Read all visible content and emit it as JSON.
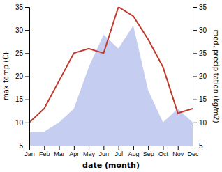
{
  "chart_data": {
    "type": "line",
    "x_label": "date (month)",
    "y_label": "max temp (C)",
    "y2_label": "med. precipitation (kg/m2)",
    "categories": [
      "Jan",
      "Feb",
      "Mar",
      "Apr",
      "May",
      "Jun",
      "Jul",
      "Aug",
      "Sep",
      "Oct",
      "Nov",
      "Dec"
    ],
    "series": [
      {
        "type": "area",
        "axis": "y2",
        "color": "#c5cef0",
        "values": [
          8,
          8,
          10,
          13,
          22,
          29,
          26,
          31,
          17,
          10,
          13,
          10
        ]
      },
      {
        "type": "line",
        "color": "#c0392b",
        "values": [
          10,
          13,
          19,
          25,
          26,
          25,
          35,
          33,
          28,
          22,
          12,
          13
        ]
      }
    ],
    "ylim": [
      5,
      35
    ],
    "yticks": [
      5,
      10,
      15,
      20,
      25,
      30,
      35
    ],
    "y2lim": [
      5,
      35
    ],
    "y2ticks": [
      5,
      10,
      15,
      20,
      25,
      30,
      35
    ],
    "grid": false
  }
}
